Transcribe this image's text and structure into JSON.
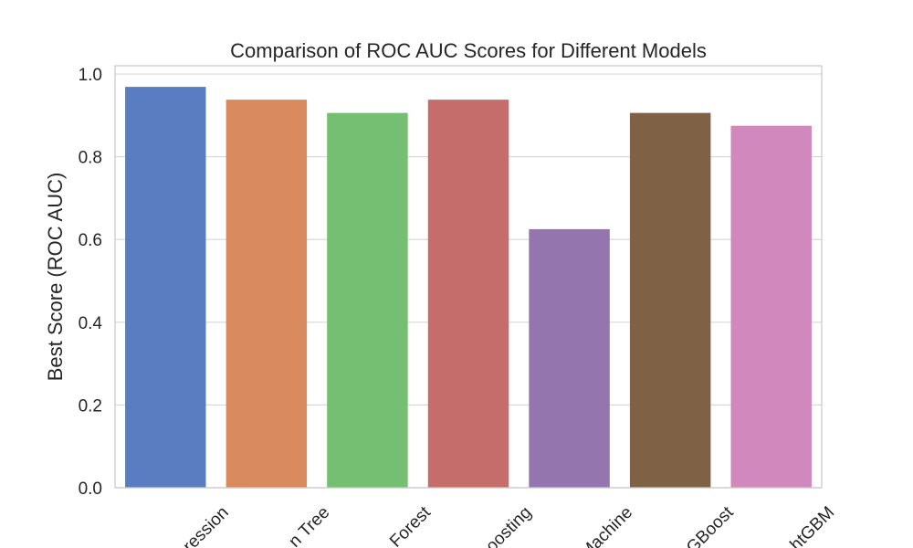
{
  "chart_data": {
    "type": "bar",
    "title": "Comparison of ROC AUC Scores for Different Models",
    "xlabel": "",
    "ylabel": "Best Score (ROC AUC)",
    "categories": [
      "Logistic Regression",
      "Decision Tree",
      "Random Forest",
      "Gradient Boosting",
      "Support Vector Machine",
      "XGBoost",
      "LightGBM"
    ],
    "visible_tick_labels": [
      "ression",
      "n Tree",
      "Forest",
      "oosting",
      "Machine",
      "GBoost",
      "htGBM"
    ],
    "values": [
      0.969,
      0.938,
      0.906,
      0.938,
      0.625,
      0.906,
      0.875
    ],
    "colors": [
      "#5a7dc2",
      "#d98a5f",
      "#74bf71",
      "#c56d6b",
      "#9575ad",
      "#7f6146",
      "#d088bd"
    ],
    "ylim": [
      0,
      1.02
    ],
    "yticks": [
      "0.0",
      "0.2",
      "0.4",
      "0.6",
      "0.8",
      "1.0"
    ],
    "ytick_values": [
      0,
      0.2,
      0.4,
      0.6,
      0.8,
      1.0
    ],
    "grid": true,
    "legend": "none"
  }
}
